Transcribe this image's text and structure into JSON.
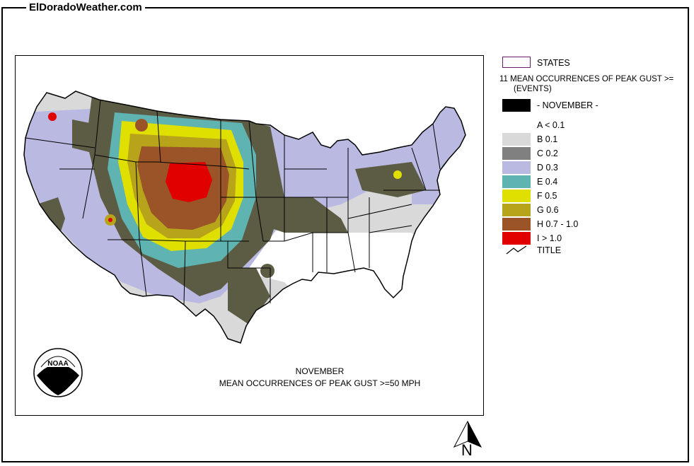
{
  "site": {
    "title": "ElDoradoWeather.com"
  },
  "map": {
    "caption_line1": "NOVEMBER",
    "caption_line2": "MEAN OCCURRENCES OF PEAK GUST >=50 MPH",
    "logo_text": "NOAA",
    "colors": {
      "A": "#ffffff",
      "B": "#d9d9d9",
      "C": "#808080",
      "D": "#b9b9e1",
      "E": "#5fb3b0",
      "F": "#e0e000",
      "G": "#b8a41a",
      "H": "#9a5428",
      "I": "#e00000",
      "dark": "#5c5c44",
      "background": "#ffffff"
    }
  },
  "legend": {
    "states_label": "STATES",
    "title_line1": "11 MEAN OCCURRENCES OF PEAK GUST >=",
    "title_line2": "(EVENTS)",
    "month_label": "- NOVEMBER -",
    "month_color": "#000000",
    "items": [
      {
        "label": "A < 0.1",
        "color": "#ffffff"
      },
      {
        "label": "B 0.1",
        "color": "#d9d9d9"
      },
      {
        "label": "C 0.2",
        "color": "#808080"
      },
      {
        "label": "D 0.3",
        "color": "#b9b9e1"
      },
      {
        "label": "E 0.4",
        "color": "#5fb3b0"
      },
      {
        "label": "F 0.5",
        "color": "#e0e000"
      },
      {
        "label": "G 0.6",
        "color": "#b8a41a"
      },
      {
        "label": "H 0.7 - 1.0",
        "color": "#9a5428"
      },
      {
        "label": "I > 1.0",
        "color": "#e00000"
      }
    ],
    "title_line_label": "TITLE"
  },
  "compass": {
    "label": "N",
    "icon": "north-arrow-icon"
  }
}
